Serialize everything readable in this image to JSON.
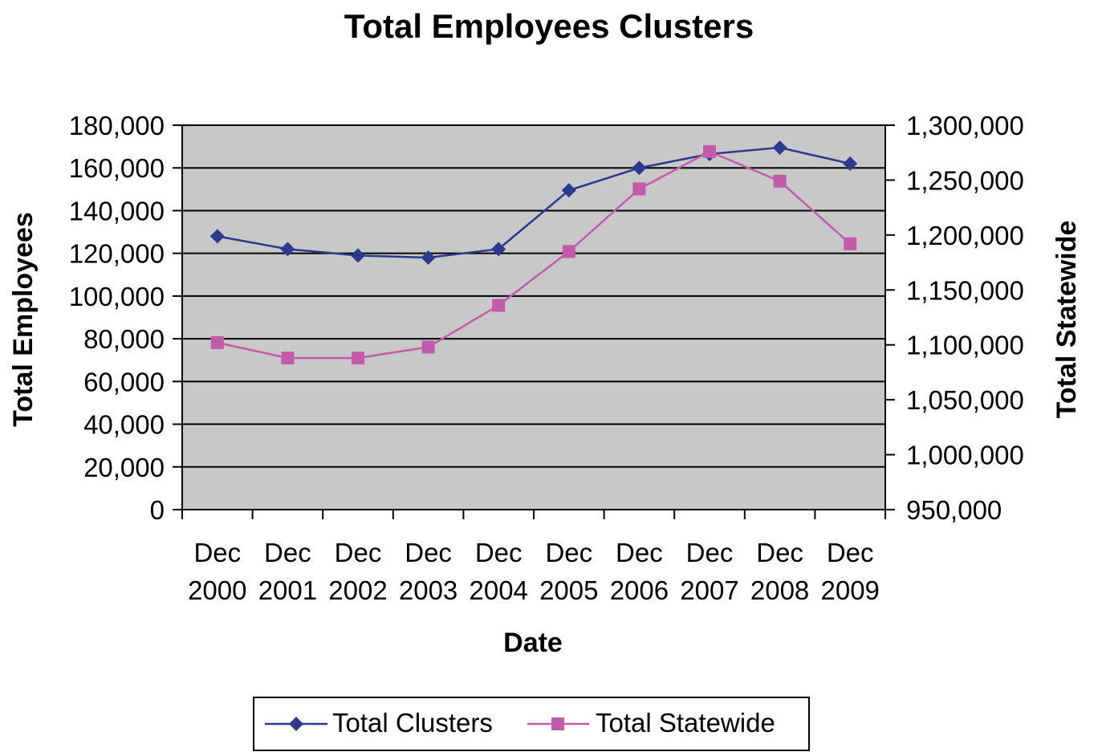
{
  "chart_data": {
    "type": "line",
    "title": "Total Employees Clusters",
    "xlabel": "Date",
    "ylabel": "Total Employees",
    "y2label": "Total Statewide",
    "categories": [
      [
        "Dec",
        "2000"
      ],
      [
        "Dec",
        "2001"
      ],
      [
        "Dec",
        "2002"
      ],
      [
        "Dec",
        "2003"
      ],
      [
        "Dec",
        "2004"
      ],
      [
        "Dec",
        "2005"
      ],
      [
        "Dec",
        "2006"
      ],
      [
        "Dec",
        "2007"
      ],
      [
        "Dec",
        "2008"
      ],
      [
        "Dec",
        "2009"
      ]
    ],
    "ylim": [
      0,
      180000
    ],
    "yticks": [
      0,
      20000,
      40000,
      60000,
      80000,
      100000,
      120000,
      140000,
      160000,
      180000
    ],
    "ytick_labels": [
      "0",
      "20,000",
      "40,000",
      "60,000",
      "80,000",
      "100,000",
      "120,000",
      "140,000",
      "160,000",
      "180,000"
    ],
    "y2lim": [
      950000,
      1300000
    ],
    "y2ticks": [
      950000,
      1000000,
      1050000,
      1100000,
      1150000,
      1200000,
      1250000,
      1300000
    ],
    "y2tick_labels": [
      "950,000",
      "1,000,000",
      "1,050,000",
      "1,100,000",
      "1,150,000",
      "1,200,000",
      "1,250,000",
      "1,300,000"
    ],
    "grid": true,
    "legend_position": "bottom-center",
    "series": [
      {
        "name": "Total Clusters",
        "axis": "left",
        "marker": "diamond",
        "color": "#2B3A8C",
        "values": [
          128000,
          122000,
          119000,
          118000,
          122000,
          149500,
          160000,
          166500,
          169500,
          162000
        ]
      },
      {
        "name": "Total Statewide",
        "axis": "right",
        "marker": "square",
        "color": "#C45BAA",
        "values": [
          1102000,
          1088000,
          1088000,
          1098000,
          1136000,
          1185000,
          1242000,
          1276000,
          1249000,
          1192000
        ]
      }
    ],
    "colors": {
      "plot_background": "#C8C8C8",
      "gridline": "#000000"
    }
  }
}
